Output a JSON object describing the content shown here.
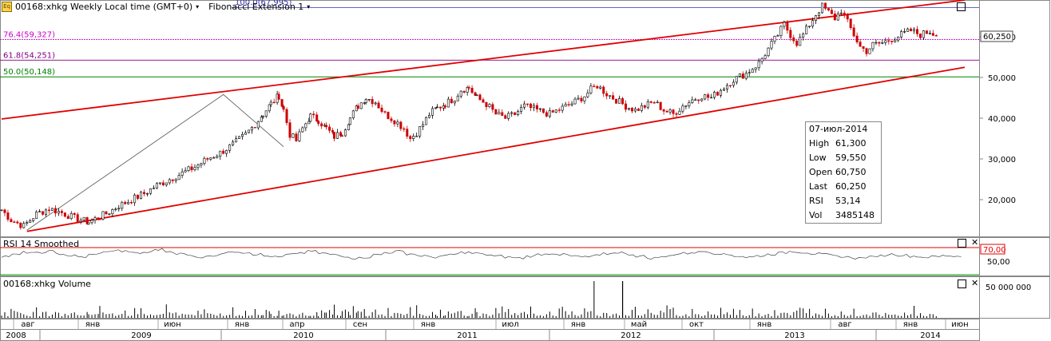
{
  "header": {
    "icon": "eq-icon",
    "symbol_label": "00168:xhkg Weekly Local time (GMT+0)",
    "study_label": "Fibonacci Extension 1",
    "fib_top_label": "100.0(67,995)"
  },
  "fib_levels": [
    {
      "label": "76.4(59,327)",
      "value": 59327,
      "color": "#cc00cc"
    },
    {
      "label": "61.8(54,251)",
      "value": 54251,
      "color": "#800080"
    },
    {
      "label": "50.0(50,148)",
      "value": 50148,
      "color": "#008000"
    }
  ],
  "last_price_label": "60,250",
  "info_box": {
    "date": "07-июл-2014",
    "rows": [
      {
        "k": "High",
        "v": "61,300"
      },
      {
        "k": "Low",
        "v": "59,550"
      },
      {
        "k": "Open",
        "v": "60,750"
      },
      {
        "k": "Last",
        "v": "60,250"
      },
      {
        "k": "RSI",
        "v": "53,14"
      },
      {
        "k": "Vol",
        "v": "3485148"
      }
    ]
  },
  "rsi_panel": {
    "title": "RSI 14 Smoothed",
    "level_label": "70,00",
    "mid_label": "50,00"
  },
  "volume_panel": {
    "title": "00168:xhkg Volume",
    "axis_label": "50 000 000"
  },
  "colors": {
    "up": "#000000",
    "down": "#cc0000",
    "channel": "#e00000",
    "rsi_70": "#e00000",
    "rsi_30": "#00aa00"
  },
  "chart_data": {
    "type": "candlestick",
    "price_axis": {
      "ticks": [
        "20,000",
        "30,000",
        "40,000",
        "50,000",
        "60,000"
      ],
      "tick_values": [
        20000,
        30000,
        40000,
        50000,
        60000
      ]
    },
    "time_axis": {
      "months": [
        "авг",
        "янв",
        "июн",
        "янв",
        "апр",
        "сен",
        "янв",
        "июл",
        "янв",
        "май",
        "окт",
        "янв",
        "авг",
        "янв",
        "июн"
      ],
      "years": [
        "2008",
        "2009",
        "2010",
        "2011",
        "2012",
        "2013",
        "2014"
      ]
    },
    "close_series": [
      [
        0,
        17500
      ],
      [
        6,
        15000
      ],
      [
        14,
        13500
      ],
      [
        22,
        16500
      ],
      [
        30,
        17800
      ],
      [
        38,
        16800
      ],
      [
        46,
        15500
      ],
      [
        55,
        14500
      ],
      [
        62,
        15800
      ],
      [
        68,
        17000
      ],
      [
        74,
        18500
      ],
      [
        82,
        20000
      ],
      [
        90,
        21500
      ],
      [
        98,
        23500
      ],
      [
        106,
        25000
      ],
      [
        114,
        26500
      ],
      [
        122,
        28000
      ],
      [
        130,
        30000
      ],
      [
        138,
        31500
      ],
      [
        146,
        33500
      ],
      [
        154,
        36000
      ],
      [
        160,
        38500
      ],
      [
        165,
        41000
      ],
      [
        170,
        43500
      ],
      [
        175,
        45500
      ],
      [
        178,
        42000
      ],
      [
        182,
        36000
      ],
      [
        186,
        34500
      ],
      [
        190,
        37500
      ],
      [
        195,
        40500
      ],
      [
        200,
        39500
      ],
      [
        205,
        37500
      ],
      [
        210,
        35500
      ],
      [
        215,
        36500
      ],
      [
        220,
        40000
      ],
      [
        225,
        43000
      ],
      [
        230,
        45000
      ],
      [
        236,
        44000
      ],
      [
        242,
        41000
      ],
      [
        248,
        39500
      ],
      [
        254,
        37500
      ],
      [
        258,
        35000
      ],
      [
        262,
        36500
      ],
      [
        266,
        38500
      ],
      [
        270,
        41000
      ],
      [
        275,
        42500
      ],
      [
        280,
        43500
      ],
      [
        286,
        45000
      ],
      [
        290,
        47000
      ],
      [
        295,
        47500
      ],
      [
        300,
        45000
      ],
      [
        306,
        43500
      ],
      [
        312,
        41000
      ],
      [
        318,
        40000
      ],
      [
        324,
        41000
      ],
      [
        330,
        43000
      ],
      [
        338,
        42000
      ],
      [
        346,
        41000
      ],
      [
        354,
        42500
      ],
      [
        362,
        44000
      ],
      [
        368,
        45500
      ],
      [
        372,
        47000
      ],
      [
        376,
        48000
      ],
      [
        382,
        46000
      ],
      [
        388,
        44500
      ],
      [
        394,
        43000
      ],
      [
        400,
        42000
      ],
      [
        406,
        43000
      ],
      [
        412,
        44000
      ],
      [
        418,
        42000
      ],
      [
        424,
        41000
      ],
      [
        430,
        43000
      ],
      [
        436,
        44500
      ],
      [
        442,
        45500
      ],
      [
        448,
        45000
      ],
      [
        454,
        47000
      ],
      [
        462,
        49500
      ],
      [
        470,
        51000
      ],
      [
        478,
        53500
      ],
      [
        484,
        57000
      ],
      [
        490,
        60500
      ],
      [
        494,
        63000
      ],
      [
        498,
        60500
      ],
      [
        502,
        58500
      ],
      [
        506,
        60500
      ],
      [
        510,
        63000
      ],
      [
        514,
        65500
      ],
      [
        518,
        67500
      ],
      [
        522,
        66000
      ],
      [
        526,
        64500
      ],
      [
        530,
        66500
      ],
      [
        534,
        63500
      ],
      [
        538,
        60500
      ],
      [
        542,
        57500
      ],
      [
        546,
        56500
      ],
      [
        550,
        58000
      ],
      [
        556,
        58500
      ],
      [
        562,
        59500
      ],
      [
        568,
        60500
      ],
      [
        574,
        61500
      ],
      [
        580,
        60500
      ],
      [
        586,
        61300
      ],
      [
        590,
        60250
      ]
    ],
    "candle_x_range": [
      0,
      590
    ],
    "channel_lines": [
      {
        "from": [
          0,
          39800
        ],
        "to": [
          608,
          69000
        ]
      },
      {
        "from": [
          16,
          12200
        ],
        "to": [
          608,
          52500
        ]
      }
    ],
    "fib_extension_points": [
      [
        16,
        12500
      ],
      [
        140,
        45800
      ],
      [
        178,
        33000
      ]
    ],
    "rsi": {
      "levels": [
        70,
        50,
        30
      ],
      "values": [
        52,
        55,
        60,
        58,
        62,
        57,
        53,
        50,
        55,
        60,
        64,
        62,
        58,
        60,
        66,
        62,
        57,
        53,
        50,
        54,
        58,
        62,
        60,
        56,
        52,
        50,
        55,
        59,
        62,
        58,
        55,
        52,
        48,
        50,
        55,
        60,
        62,
        57,
        53,
        50,
        52,
        56,
        60,
        58,
        55,
        52,
        50,
        48,
        52,
        56,
        58,
        55,
        52,
        50,
        53,
        57,
        60,
        56,
        52,
        48,
        50,
        55,
        58,
        60,
        62,
        58,
        55,
        52,
        50,
        53,
        56,
        59,
        62,
        60,
        57,
        55,
        52,
        50,
        48,
        50,
        53,
        56,
        54,
        52,
        50,
        51,
        53,
        52
      ]
    },
    "volume": {
      "spike_index": 392,
      "max": 50000000
    }
  }
}
